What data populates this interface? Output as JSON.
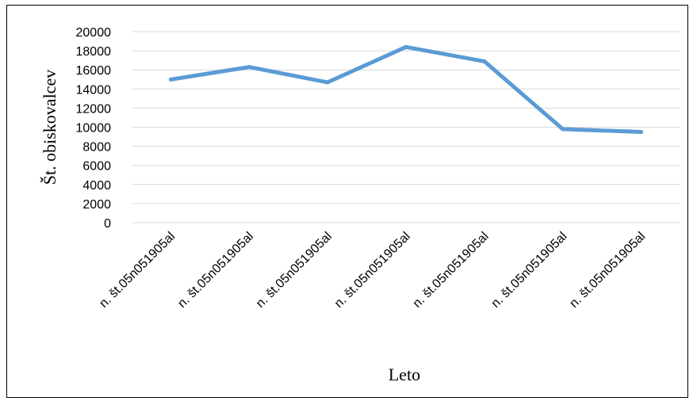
{
  "chart_data": {
    "type": "line",
    "categories": [
      "n. št.05n051905al",
      "n. št.05n051905al",
      "n. št.05n051905al",
      "n. št.05n051905al",
      "n. št.05n051905al",
      "n. št.05n051905al",
      "n. št.05n051905al"
    ],
    "series": [
      {
        "values": [
          15000,
          16300,
          14700,
          18400,
          16900,
          9800,
          9500
        ],
        "color": "#5b9bd5"
      }
    ],
    "title": "",
    "xlabel": "Leto",
    "ylabel": "Št. obiskovalcev",
    "ylim": [
      0,
      20000
    ],
    "yticks": [
      0,
      2000,
      4000,
      6000,
      8000,
      10000,
      12000,
      14000,
      16000,
      18000,
      20000
    ],
    "grid": true,
    "legend": "none"
  }
}
